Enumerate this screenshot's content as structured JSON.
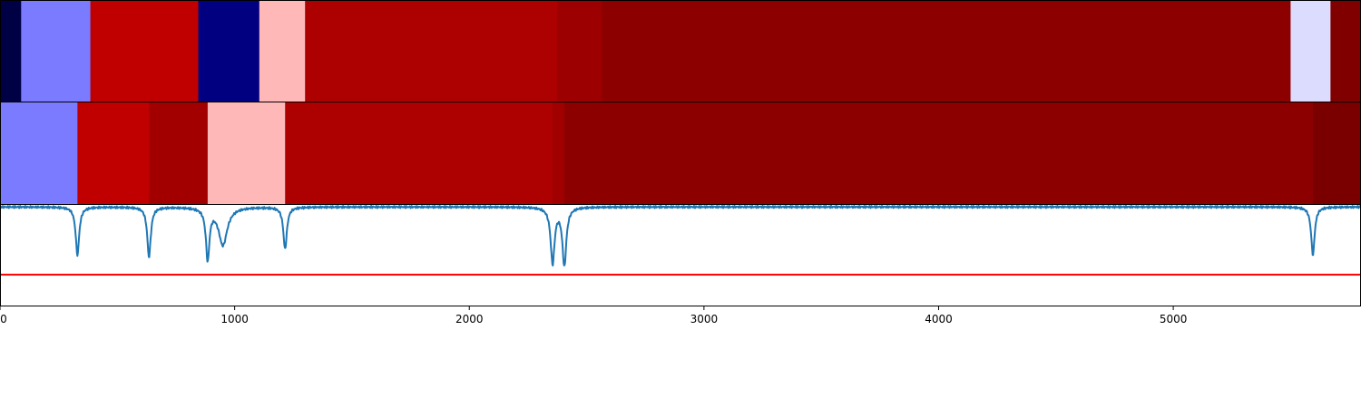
{
  "chart_data": [
    {
      "type": "heatmap",
      "segments": [
        {
          "start": 0,
          "end": 90,
          "color": "#000044"
        },
        {
          "start": 90,
          "end": 385,
          "color": "#7b7bff"
        },
        {
          "start": 385,
          "end": 845,
          "color": "#c00000"
        },
        {
          "start": 845,
          "end": 1105,
          "color": "#000080"
        },
        {
          "start": 1105,
          "end": 1300,
          "color": "#ffb8b8"
        },
        {
          "start": 1300,
          "end": 2375,
          "color": "#ad0000"
        },
        {
          "start": 2375,
          "end": 2565,
          "color": "#9c0000"
        },
        {
          "start": 2565,
          "end": 5500,
          "color": "#8c0000"
        },
        {
          "start": 5500,
          "end": 5670,
          "color": "#dcdcff"
        },
        {
          "start": 5670,
          "end": 5800,
          "color": "#800000"
        }
      ]
    },
    {
      "type": "heatmap",
      "segments": [
        {
          "start": 0,
          "end": 330,
          "color": "#7b7bff"
        },
        {
          "start": 330,
          "end": 635,
          "color": "#c00000"
        },
        {
          "start": 635,
          "end": 885,
          "color": "#a20000"
        },
        {
          "start": 885,
          "end": 1215,
          "color": "#ffb8b8"
        },
        {
          "start": 1215,
          "end": 2355,
          "color": "#ad0000"
        },
        {
          "start": 2355,
          "end": 2405,
          "color": "#a00000"
        },
        {
          "start": 2405,
          "end": 5595,
          "color": "#8c0000"
        },
        {
          "start": 5595,
          "end": 5800,
          "color": "#7a0000"
        }
      ]
    },
    {
      "type": "line",
      "xlim": [
        0,
        5800
      ],
      "ylim": [
        -1,
        0.02
      ],
      "x_ticks": [
        0,
        1000,
        2000,
        3000,
        4000,
        5000
      ],
      "x_tick_labels": [
        "0",
        "1000",
        "2000",
        "3000",
        "4000",
        "5000"
      ],
      "series": [
        {
          "color": "#1f77b4",
          "baseline": 0,
          "dips": [
            {
              "center": 330,
              "depth": 0.48,
              "width": 9
            },
            {
              "center": 635,
              "depth": 0.5,
              "width": 9
            },
            {
              "center": 885,
              "depth": 0.51,
              "width": 9
            },
            {
              "center": 950,
              "depth": 0.38,
              "width": 22
            },
            {
              "center": 1215,
              "depth": 0.42,
              "width": 9
            },
            {
              "center": 2355,
              "depth": 0.56,
              "width": 10
            },
            {
              "center": 2405,
              "depth": 0.58,
              "width": 10
            },
            {
              "center": 5595,
              "depth": 0.48,
              "width": 9
            }
          ]
        }
      ],
      "threshold": {
        "value": -0.68,
        "color": "#ff0000"
      }
    }
  ]
}
